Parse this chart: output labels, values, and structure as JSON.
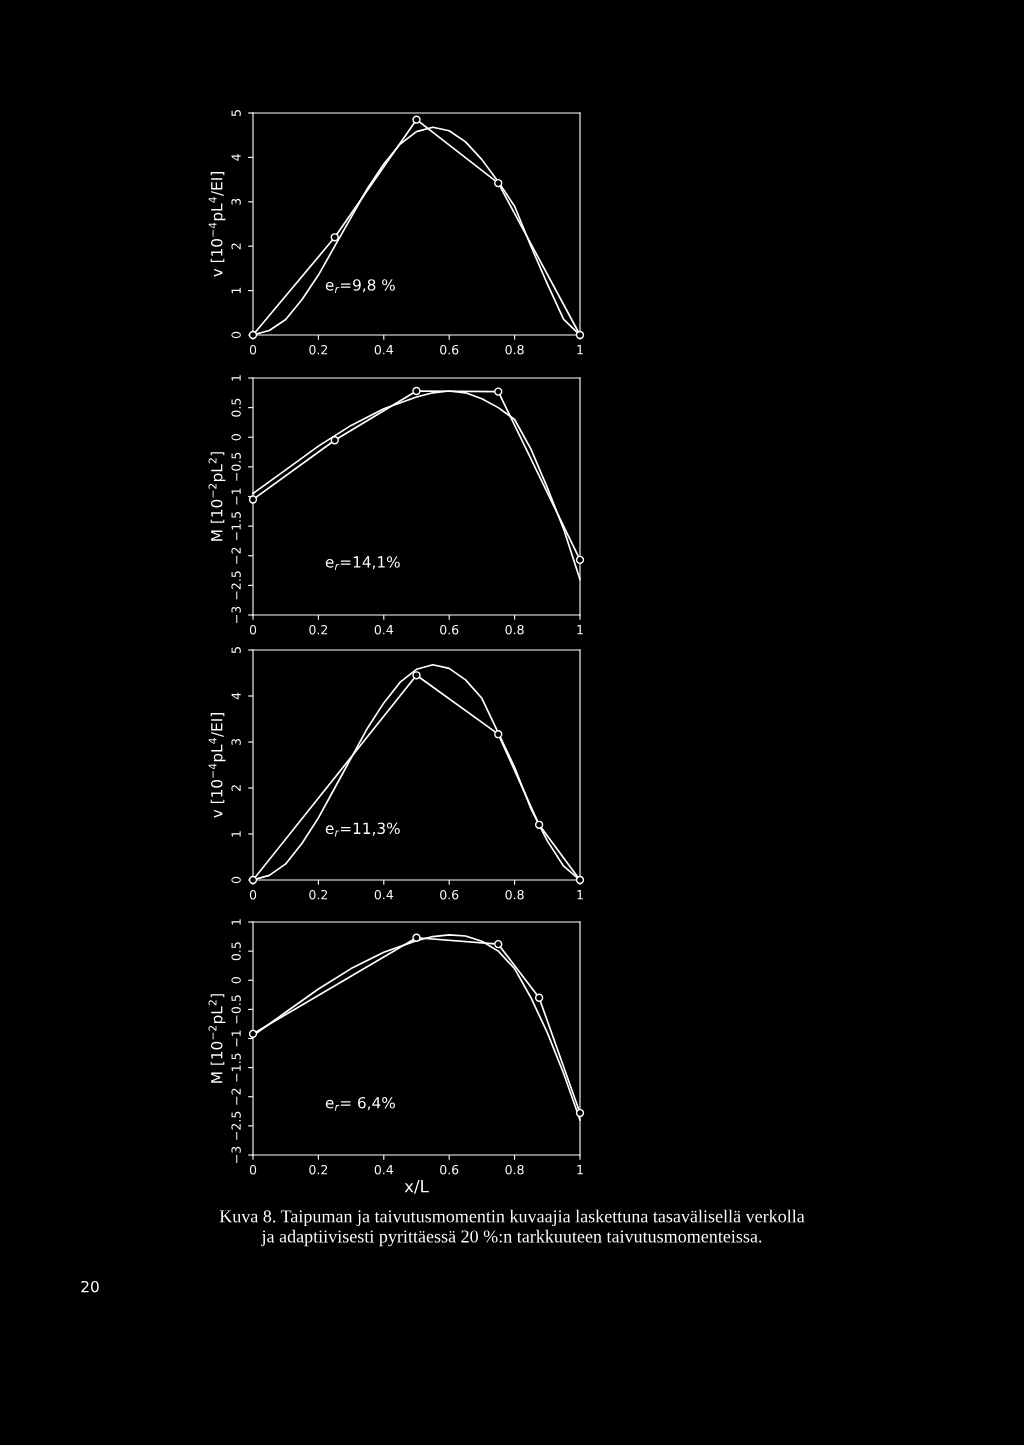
{
  "chart_data": [
    {
      "type": "line",
      "ylabel": "v [10$^{−4}$pL$^{4}$/EI]",
      "xlim": [
        0,
        1
      ],
      "ylim": [
        0,
        5
      ],
      "xticks": [
        0,
        0.2,
        0.4,
        0.6,
        0.8,
        1
      ],
      "yticks": [
        0,
        1,
        2,
        3,
        4,
        5
      ],
      "grid": false,
      "legend": false,
      "annotations": [
        "e$_{r}$=9,8 %"
      ],
      "series": [
        {
          "color": "#ffffff",
          "marker": "circle",
          "x": [
            0,
            0.25,
            0.5,
            0.75,
            1
          ],
          "values": [
            0,
            2.2,
            4.85,
            3.42,
            0
          ]
        },
        {
          "color": "#ffffff",
          "marker": "none",
          "x": [
            0,
            0.05,
            0.1,
            0.15,
            0.2,
            0.25,
            0.3,
            0.35,
            0.4,
            0.45,
            0.5,
            0.55,
            0.6,
            0.65,
            0.7,
            0.75,
            0.8,
            0.85,
            0.9,
            0.95,
            1
          ],
          "values": [
            0,
            0.1,
            0.35,
            0.8,
            1.35,
            2.0,
            2.65,
            3.3,
            3.85,
            4.3,
            4.58,
            4.68,
            4.6,
            4.35,
            3.95,
            3.45,
            2.9,
            2.0,
            1.15,
            0.35,
            0
          ]
        }
      ]
    },
    {
      "type": "line",
      "ylabel": "M [10$^{−2}$pL$^{2}$]",
      "xlim": [
        0,
        1
      ],
      "ylim": [
        -3,
        1
      ],
      "xticks": [
        0,
        0.2,
        0.4,
        0.6,
        0.8,
        1
      ],
      "yticks": [
        {
          "value": -3,
          "label": "−3"
        },
        {
          "value": -2.5,
          "label": "−2.5"
        },
        {
          "value": -2,
          "label": "−2"
        },
        {
          "value": -1.5,
          "label": "−1.5"
        },
        {
          "value": -1,
          "label": "−1"
        },
        {
          "value": -0.5,
          "label": "−0.5"
        },
        0,
        0.5,
        1
      ],
      "grid": false,
      "legend": false,
      "annotations": [
        "e$_{r}$=14,1%"
      ],
      "series": [
        {
          "color": "#ffffff",
          "marker": "circle",
          "x": [
            0,
            0.25,
            0.5,
            0.75,
            1
          ],
          "values": [
            -1.05,
            -0.05,
            0.78,
            0.77,
            -2.07
          ]
        },
        {
          "color": "#ffffff",
          "marker": "none",
          "x": [
            0,
            0.1,
            0.2,
            0.3,
            0.4,
            0.5,
            0.55,
            0.6,
            0.65,
            0.7,
            0.75,
            0.8,
            0.85,
            0.9,
            0.95,
            1
          ],
          "values": [
            -0.95,
            -0.55,
            -0.15,
            0.2,
            0.48,
            0.68,
            0.75,
            0.78,
            0.75,
            0.65,
            0.5,
            0.3,
            -0.2,
            -0.85,
            -1.55,
            -2.4
          ]
        }
      ]
    },
    {
      "type": "line",
      "ylabel": "v [10$^{−4}$pL$^{4}$/EI]",
      "xlim": [
        0,
        1
      ],
      "ylim": [
        0,
        5
      ],
      "xticks": [
        0,
        0.2,
        0.4,
        0.6,
        0.8,
        1
      ],
      "yticks": [
        0,
        1,
        2,
        3,
        4,
        5
      ],
      "grid": false,
      "legend": false,
      "annotations": [
        "e$_{r}$=11,3%"
      ],
      "series": [
        {
          "color": "#ffffff",
          "marker": "circle",
          "x": [
            0,
            0.5,
            0.75,
            0.875,
            1
          ],
          "values": [
            0,
            4.45,
            3.17,
            1.2,
            0
          ]
        },
        {
          "color": "#ffffff",
          "marker": "none",
          "x": [
            0,
            0.05,
            0.1,
            0.15,
            0.2,
            0.25,
            0.3,
            0.35,
            0.4,
            0.45,
            0.5,
            0.55,
            0.6,
            0.65,
            0.7,
            0.75,
            0.8,
            0.85,
            0.9,
            0.95,
            1
          ],
          "values": [
            0,
            0.1,
            0.35,
            0.8,
            1.35,
            2.0,
            2.65,
            3.3,
            3.85,
            4.3,
            4.58,
            4.68,
            4.6,
            4.35,
            3.95,
            3.2,
            2.45,
            1.55,
            0.85,
            0.3,
            0
          ]
        }
      ]
    },
    {
      "type": "line",
      "xlabel": "x/L",
      "ylabel": "M [10$^{−2}$pL$^{2}$]",
      "xlim": [
        0,
        1
      ],
      "ylim": [
        -3,
        1
      ],
      "xticks": [
        0,
        0.2,
        0.4,
        0.6,
        0.8,
        1
      ],
      "yticks": [
        {
          "value": -3,
          "label": "−3"
        },
        {
          "value": -2.5,
          "label": "−2.5"
        },
        {
          "value": -2,
          "label": "−2"
        },
        {
          "value": -1.5,
          "label": "−1.5"
        },
        {
          "value": -1,
          "label": "−1"
        },
        {
          "value": -0.5,
          "label": "−0.5"
        },
        0,
        0.5,
        1
      ],
      "grid": false,
      "legend": false,
      "annotations": [
        "e$_{r}$= 6,4%",
        "Kuva 8. Taipuman ja taivutusmomentin kuvaajia laskettuna tasavälisellä verkolla\nja adaptiivisesti pyrittäessä 20 %:n tarkkuuteen taivutusmomenteissa.",
        "20"
      ],
      "series": [
        {
          "color": "#ffffff",
          "marker": "circle",
          "x": [
            0,
            0.5,
            0.75,
            0.875,
            1
          ],
          "values": [
            -0.92,
            0.73,
            0.62,
            -0.3,
            -2.28
          ]
        },
        {
          "color": "#ffffff",
          "marker": "none",
          "x": [
            0,
            0.1,
            0.2,
            0.3,
            0.4,
            0.5,
            0.55,
            0.6,
            0.65,
            0.7,
            0.75,
            0.8,
            0.85,
            0.9,
            0.95,
            1
          ],
          "values": [
            -0.95,
            -0.55,
            -0.15,
            0.2,
            0.48,
            0.68,
            0.75,
            0.78,
            0.76,
            0.67,
            0.5,
            0.2,
            -0.3,
            -0.9,
            -1.6,
            -2.4
          ]
        }
      ]
    }
  ]
}
